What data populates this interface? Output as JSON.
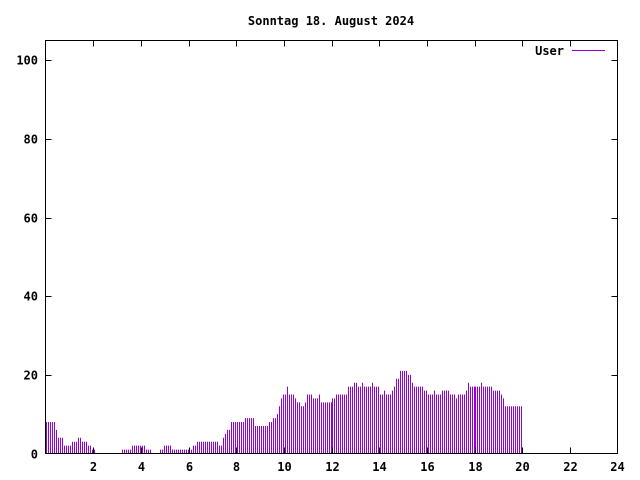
{
  "chart_data": {
    "type": "bar",
    "title": "Sonntag 18. August 2024",
    "xlabel": "",
    "ylabel": "",
    "xlim": [
      0,
      24
    ],
    "ylim": [
      0,
      105
    ],
    "x_ticks": [
      2,
      4,
      6,
      8,
      10,
      12,
      14,
      16,
      18,
      20,
      22,
      24
    ],
    "y_ticks": [
      0,
      20,
      40,
      60,
      80,
      100
    ],
    "legend_position": "top-right",
    "grid": false,
    "series": [
      {
        "name": "User",
        "color": "#9400d3",
        "sample_interval_hours": 0.083333,
        "values": [
          8,
          8,
          8,
          8,
          8,
          6,
          4,
          4,
          4,
          2,
          2,
          2,
          2,
          3,
          3,
          3,
          4,
          4,
          3,
          3,
          3,
          2,
          2,
          1,
          1,
          0,
          0,
          0,
          0,
          0,
          0,
          0,
          0,
          0,
          0,
          0,
          0,
          0,
          1,
          1,
          1,
          1,
          1,
          2,
          2,
          2,
          2,
          2,
          2,
          2,
          1,
          1,
          1,
          0,
          0,
          0,
          0,
          1,
          1,
          2,
          2,
          2,
          2,
          1,
          1,
          1,
          1,
          1,
          1,
          1,
          1,
          1,
          1,
          1,
          2,
          2,
          3,
          3,
          3,
          3,
          3,
          3,
          3,
          3,
          3,
          3,
          3,
          2,
          2,
          4,
          5,
          6,
          6,
          8,
          8,
          8,
          8,
          8,
          8,
          8,
          9,
          9,
          9,
          9,
          9,
          7,
          7,
          7,
          7,
          7,
          7,
          7,
          8,
          8,
          9,
          9,
          10,
          12,
          14,
          15,
          15,
          17,
          15,
          15,
          15,
          14,
          13,
          13,
          12,
          12,
          13,
          15,
          15,
          15,
          14,
          14,
          14,
          15,
          13,
          13,
          13,
          13,
          13,
          13,
          14,
          14,
          15,
          15,
          15,
          15,
          15,
          15,
          17,
          17,
          17,
          18,
          18,
          17,
          17,
          18,
          17,
          17,
          17,
          17,
          18,
          17,
          17,
          17,
          15,
          15,
          16,
          15,
          15,
          15,
          16,
          17,
          19,
          19,
          21,
          21,
          21,
          21,
          20,
          20,
          18,
          17,
          17,
          17,
          17,
          17,
          16,
          16,
          15,
          15,
          15,
          16,
          15,
          15,
          15,
          16,
          16,
          16,
          16,
          15,
          15,
          15,
          14,
          15,
          15,
          15,
          15,
          16,
          18,
          17,
          17,
          17,
          17,
          17,
          17,
          18,
          17,
          17,
          17,
          17,
          17,
          16,
          16,
          16,
          16,
          15,
          14,
          12,
          12,
          12,
          12,
          12,
          12,
          12,
          12,
          12
        ]
      }
    ]
  }
}
